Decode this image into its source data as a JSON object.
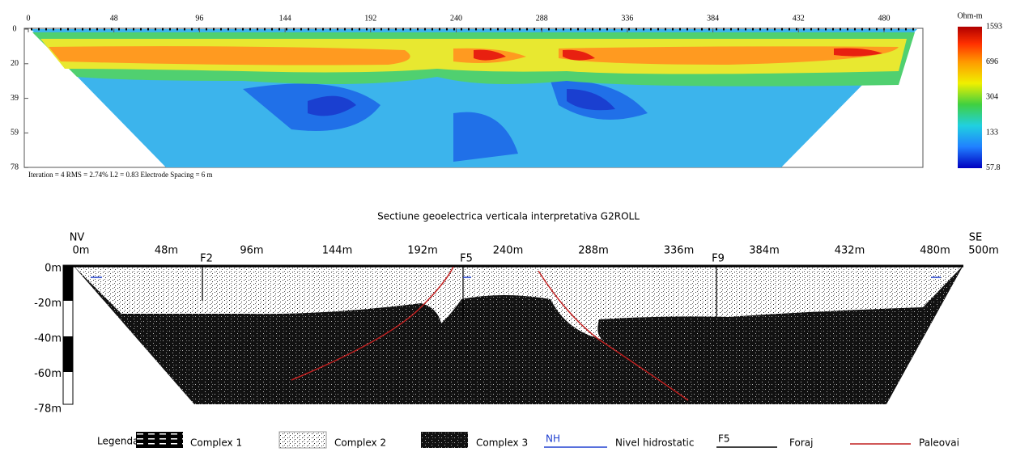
{
  "resistivity_section": {
    "x_ticks": [
      "0",
      "48",
      "96",
      "144",
      "192",
      "240",
      "288",
      "336",
      "384",
      "432",
      "480"
    ],
    "y_ticks": [
      "0",
      "20",
      "39",
      "59",
      "78"
    ],
    "colorbar": {
      "unit": "Ohm-m",
      "labels": [
        "1593",
        "696",
        "304",
        "133",
        "57.8"
      ]
    },
    "footer": "Iteration = 4    RMS = 2.74%    L2 = 0.83    Electrode Spacing = 6 m"
  },
  "interpretive_section": {
    "title": "Sectiune geoelectrica verticala interpretativa G2ROLL",
    "left_end": "NV",
    "right_end": "SE",
    "distance_labels": [
      "0m",
      "48m",
      "96m",
      "144m",
      "192m",
      "240m",
      "288m",
      "336m",
      "384m",
      "432m",
      "480m",
      "500m"
    ],
    "depth_labels": [
      "0m",
      "-20m",
      "-40m",
      "-60m",
      "-78m"
    ],
    "boreholes": [
      "F2",
      "F5",
      "F9"
    ]
  },
  "legend": {
    "title": "Legenda:",
    "items": [
      {
        "label": "Complex 1"
      },
      {
        "label": "Complex 2"
      },
      {
        "label": "Complex 3"
      },
      {
        "symbol": "NH",
        "label": "Nivel hidrostatic"
      },
      {
        "symbol": "F5",
        "label": "Foraj"
      },
      {
        "label": "Paleovai"
      }
    ]
  }
}
